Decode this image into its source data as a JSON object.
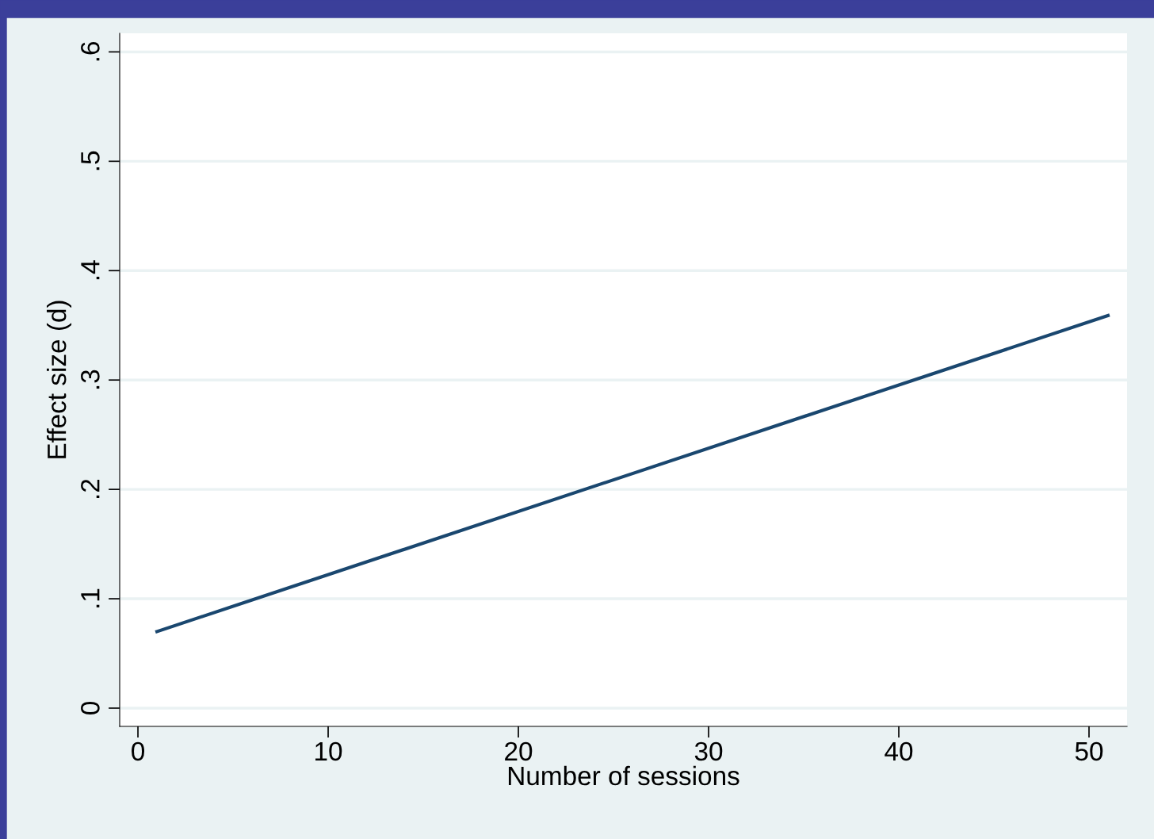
{
  "chart_data": {
    "type": "line",
    "xlabel": "Number of sessions",
    "ylabel": "Effect size (d)",
    "x": [
      1,
      51
    ],
    "series": [
      {
        "color": "#1a476f",
        "values": [
          0.07,
          0.359
        ]
      }
    ],
    "xlim": [
      -0.96,
      52
    ],
    "xticks": [
      0,
      10,
      20,
      30,
      40,
      50
    ],
    "ylim": [
      -0.0167,
      0.617
    ],
    "yticks": [
      {
        "value": 0,
        "label": "0"
      },
      {
        "value": 0.1,
        "label": ".1"
      },
      {
        "value": 0.2,
        "label": ".2"
      },
      {
        "value": 0.3,
        "label": ".3"
      },
      {
        "value": 0.4,
        "label": ".4"
      },
      {
        "value": 0.5,
        "label": ".5"
      },
      {
        "value": 0.6,
        "label": ".6"
      }
    ],
    "grid": "y",
    "legend": false,
    "marker": "none",
    "line_style": "solid"
  }
}
